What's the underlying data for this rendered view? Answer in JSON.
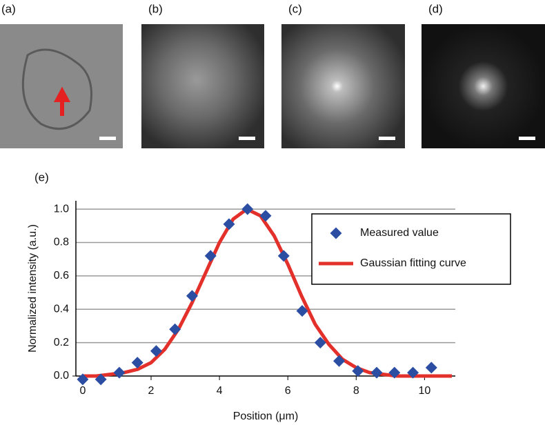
{
  "panels": [
    {
      "label": "(a)"
    },
    {
      "label": "(b)"
    },
    {
      "label": "(c)"
    },
    {
      "label": "(d)"
    }
  ],
  "chart_data": {
    "type": "scatter",
    "panel_label": "(e)",
    "x_label": "Position (μm)",
    "y_label": "Normalized intensity (a.u.)",
    "xlim": [
      -0.2,
      10.9
    ],
    "ylim": [
      0,
      1.05
    ],
    "xticks": [
      0,
      2,
      4,
      6,
      8,
      10
    ],
    "yticks": [
      {
        "value": 0,
        "label": "0.0"
      },
      {
        "value": 0.2,
        "label": "0.2"
      },
      {
        "value": 0.4,
        "label": "0.4"
      },
      {
        "value": 0.6,
        "label": "0.6"
      },
      {
        "value": 0.8,
        "label": "0.8"
      },
      {
        "value": 1,
        "label": "1.0"
      }
    ],
    "grid": true,
    "legend": "upper right",
    "series": [
      {
        "name": "Measured value",
        "type": "scatter",
        "marker": "diamond",
        "color": "#2b4ea3",
        "x": [
          0,
          0.53,
          1.07,
          1.6,
          2.15,
          2.7,
          3.2,
          3.74,
          4.28,
          4.82,
          5.35,
          5.88,
          6.42,
          6.95,
          7.5,
          8.05,
          8.6,
          9.12,
          9.66,
          10.2
        ],
        "values": [
          -0.02,
          -0.02,
          0.02,
          0.08,
          0.15,
          0.28,
          0.48,
          0.72,
          0.91,
          1.0,
          0.96,
          0.72,
          0.39,
          0.2,
          0.09,
          0.03,
          0.02,
          0.02,
          0.02,
          0.05
        ]
      },
      {
        "name": "Gaussian fitting curve",
        "type": "line",
        "color": "#e3302a",
        "x": [
          0,
          0.4,
          0.8,
          1.2,
          1.6,
          2.0,
          2.4,
          2.8,
          3.2,
          3.6,
          4.0,
          4.4,
          4.8,
          5.2,
          5.6,
          6.0,
          6.4,
          6.8,
          7.2,
          7.6,
          8.0,
          8.4,
          8.8,
          9.2,
          9.6,
          10.0,
          10.4,
          10.8
        ],
        "values": [
          0,
          0,
          0.01,
          0.02,
          0.04,
          0.08,
          0.16,
          0.28,
          0.44,
          0.62,
          0.8,
          0.94,
          1.0,
          0.96,
          0.84,
          0.67,
          0.48,
          0.31,
          0.19,
          0.1,
          0.05,
          0.02,
          0.01,
          0,
          0,
          0,
          0,
          0
        ]
      }
    ]
  }
}
